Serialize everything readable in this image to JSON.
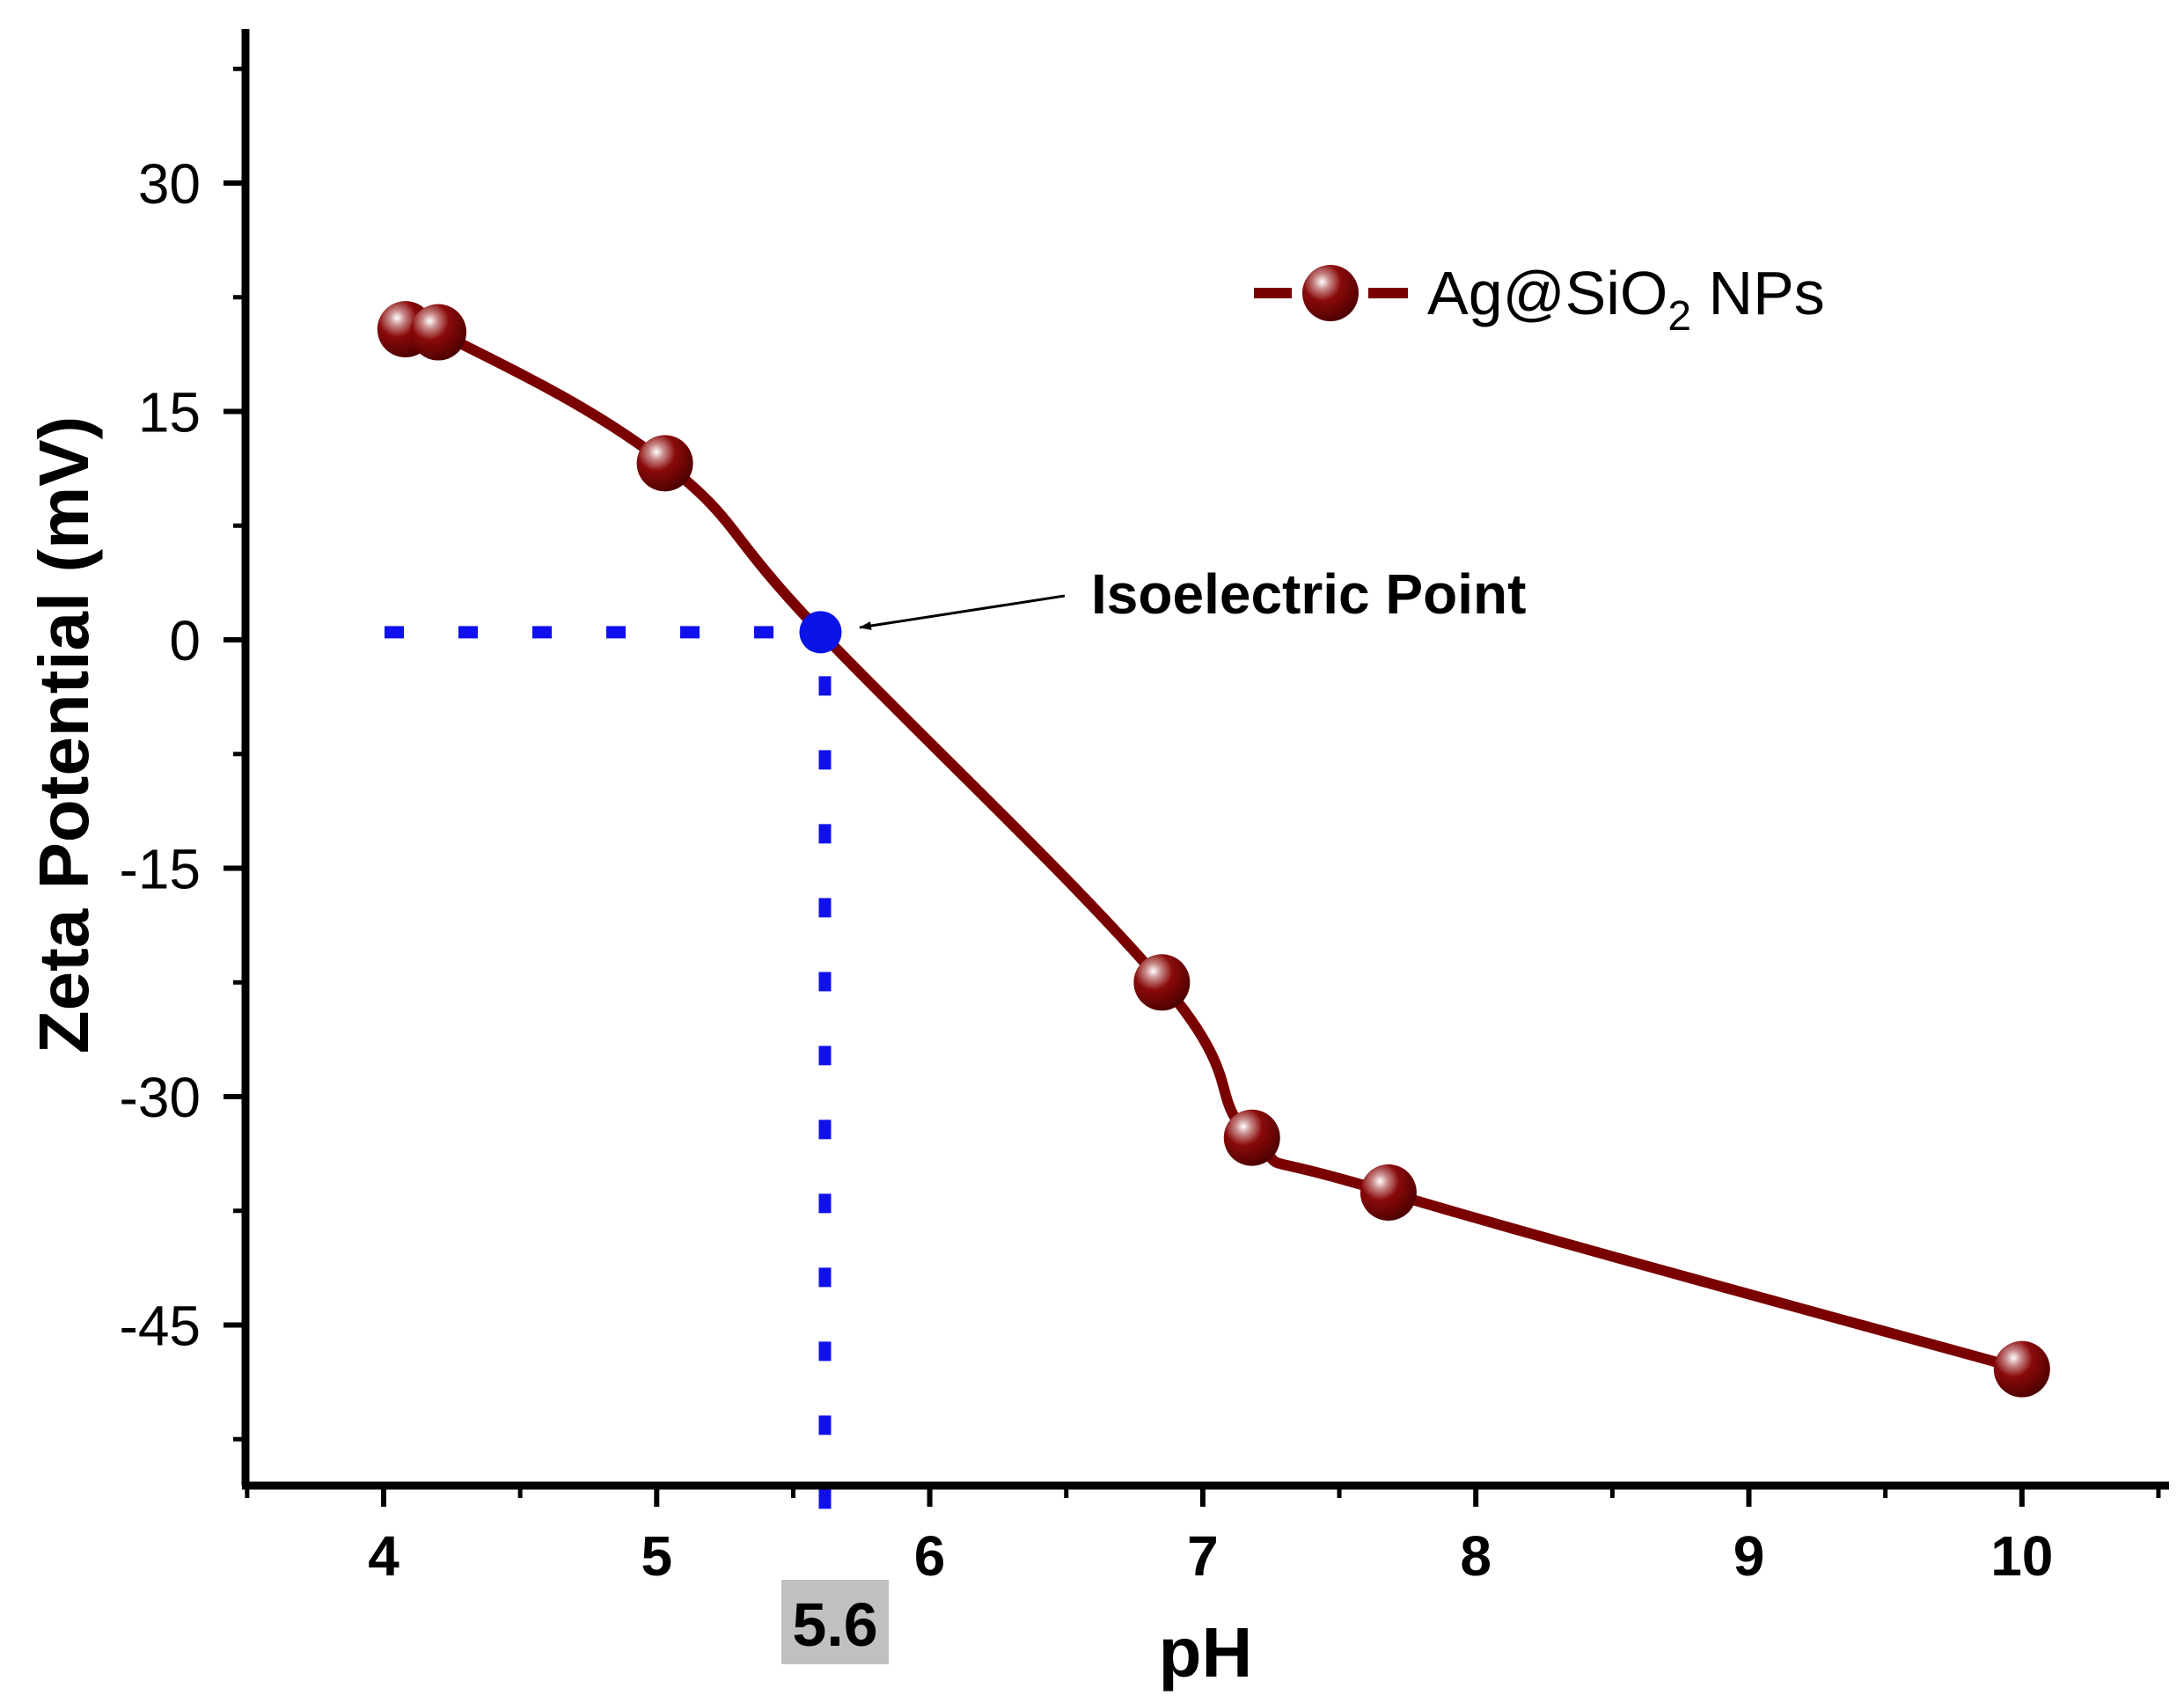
{
  "chart_data": {
    "type": "line",
    "xlabel": "pH",
    "ylabel": "Zeta Potential (mV)",
    "xlim": [
      3.5,
      10.5
    ],
    "ylim": [
      -55,
      40
    ],
    "x_ticks": [
      "4",
      "5",
      "6",
      "7",
      "8",
      "9",
      "10"
    ],
    "y_ticks": [
      "30",
      "15",
      "0",
      "-15",
      "-30",
      "-45"
    ],
    "grid": false,
    "legend_position": "top-right",
    "series": [
      {
        "name": "Ag@SiO2 NPs",
        "name_main": "Ag@SiO",
        "name_sub": "2",
        "name_tail": " NPs",
        "color": "#7a0000",
        "x": [
          4.08,
          4.2,
          5.03,
          6.85,
          7.18,
          7.68,
          10.0
        ],
        "y": [
          20.4,
          20.2,
          11.6,
          -22.5,
          -32.7,
          -36.3,
          -47.9
        ]
      }
    ],
    "annotations": {
      "isoelectric_label": "Isoelectric Point",
      "isoelectric_x": 5.6,
      "isoelectric_y": 0.5,
      "isoelectric_x_label": "5.6",
      "guide_color": "#1010ee",
      "marker_color": "#0a14e6",
      "label_bg": "#c0c0c0"
    }
  }
}
